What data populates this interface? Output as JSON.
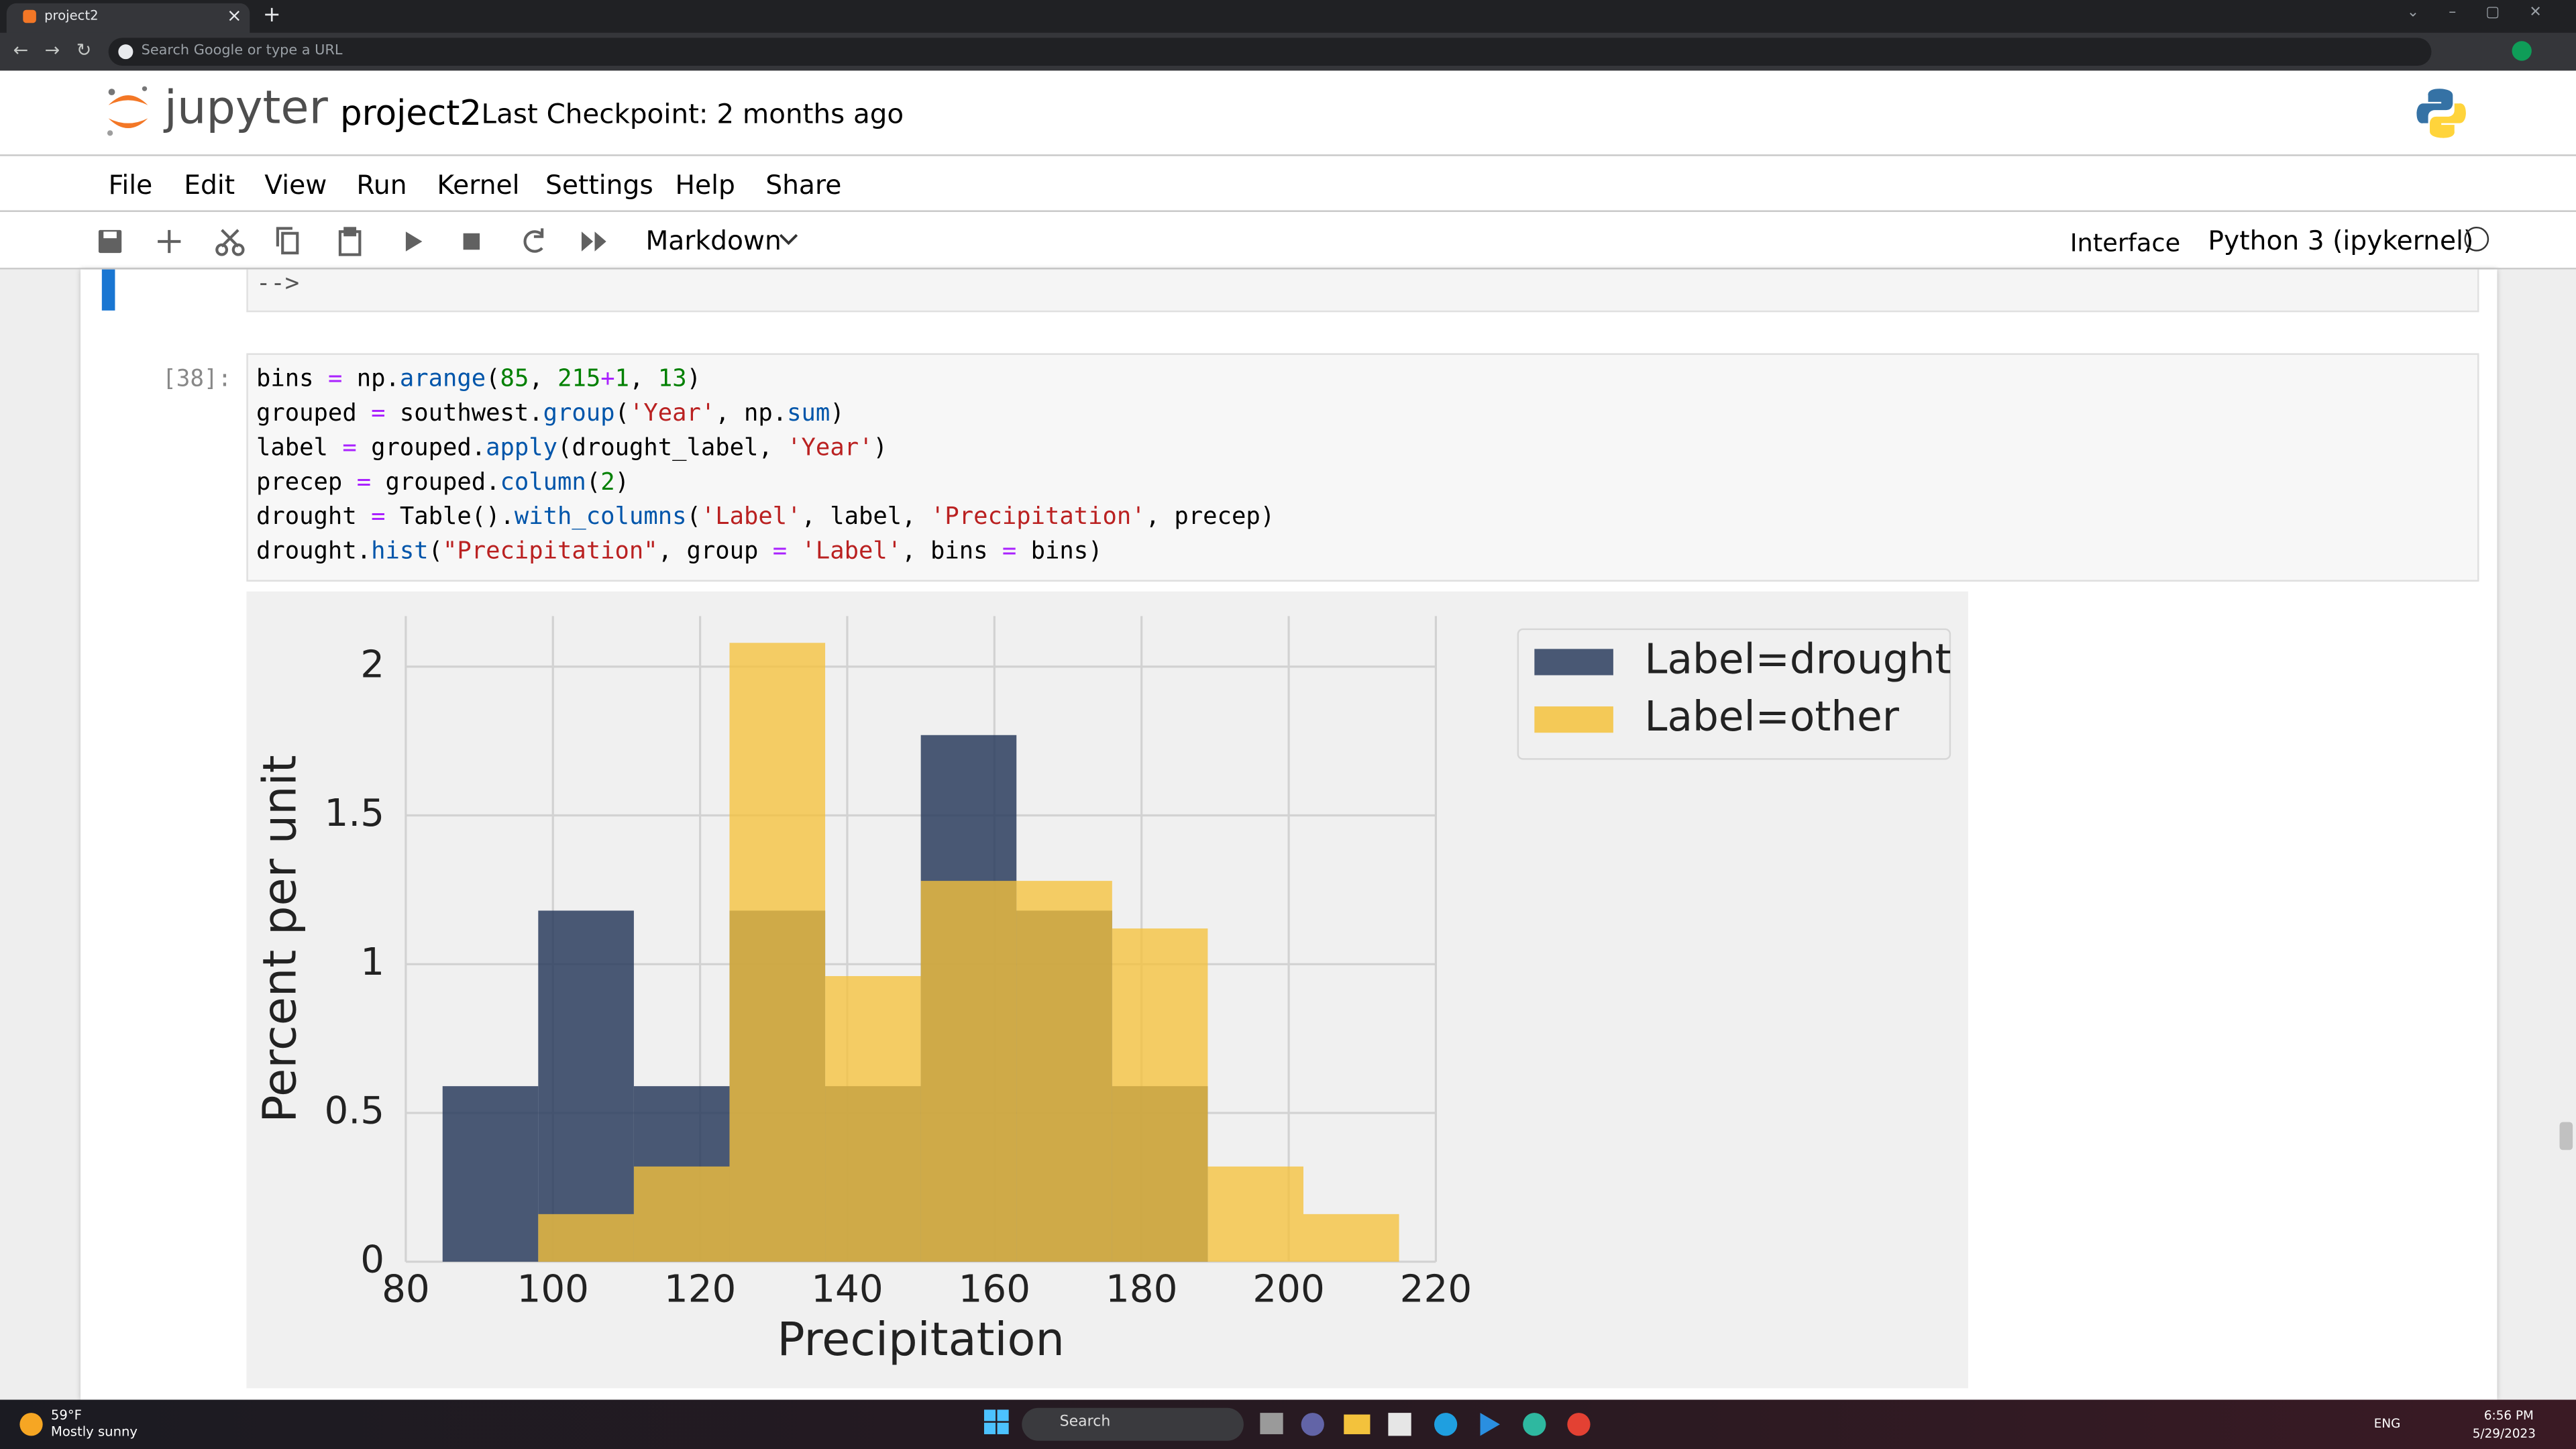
{
  "browser": {
    "tab_title": "project2",
    "address": "Search Google or type a URL"
  },
  "header": {
    "logo": "jupyter",
    "notebook_name": "project2",
    "checkpoint": "Last Checkpoint: 2 months ago"
  },
  "menu": [
    "File",
    "Edit",
    "View",
    "Run",
    "Kernel",
    "Settings",
    "Help",
    "Share"
  ],
  "toolbar": {
    "cell_type": "Markdown",
    "interface": "Interface",
    "kernel": "Python 3 (ipykernel)"
  },
  "previous_cell": {
    "text": "-->"
  },
  "code_cell": {
    "prompt": "[38]:",
    "lines": [
      [
        [
          "bins ",
          "#000000"
        ],
        [
          "=",
          "#aa22ff"
        ],
        [
          " np.",
          "#000000"
        ],
        [
          "arange",
          "#0055aa"
        ],
        [
          "(",
          "#000000"
        ],
        [
          "85",
          "#008000"
        ],
        [
          ", ",
          "#000000"
        ],
        [
          "215",
          "#008000"
        ],
        [
          "+",
          "#aa22ff"
        ],
        [
          "1",
          "#008000"
        ],
        [
          ", ",
          "#000000"
        ],
        [
          "13",
          "#008000"
        ],
        [
          ")",
          "#000000"
        ]
      ],
      [
        [
          "grouped ",
          "#000000"
        ],
        [
          "=",
          "#aa22ff"
        ],
        [
          " southwest.",
          "#000000"
        ],
        [
          "group",
          "#0055aa"
        ],
        [
          "(",
          "#000000"
        ],
        [
          "'Year'",
          "#ba2121"
        ],
        [
          ", np.",
          "#000000"
        ],
        [
          "sum",
          "#0055aa"
        ],
        [
          ")",
          "#000000"
        ]
      ],
      [
        [
          "label ",
          "#000000"
        ],
        [
          "=",
          "#aa22ff"
        ],
        [
          " grouped.",
          "#000000"
        ],
        [
          "apply",
          "#0055aa"
        ],
        [
          "(drought_label, ",
          "#000000"
        ],
        [
          "'Year'",
          "#ba2121"
        ],
        [
          ")",
          "#000000"
        ]
      ],
      [
        [
          "precep ",
          "#000000"
        ],
        [
          "=",
          "#aa22ff"
        ],
        [
          " grouped.",
          "#000000"
        ],
        [
          "column",
          "#0055aa"
        ],
        [
          "(",
          "#000000"
        ],
        [
          "2",
          "#008000"
        ],
        [
          ")",
          "#000000"
        ]
      ],
      [
        [
          "drought ",
          "#000000"
        ],
        [
          "=",
          "#aa22ff"
        ],
        [
          " Table().",
          "#000000"
        ],
        [
          "with_columns",
          "#0055aa"
        ],
        [
          "(",
          "#000000"
        ],
        [
          "'Label'",
          "#ba2121"
        ],
        [
          ", label, ",
          "#000000"
        ],
        [
          "'Precipitation'",
          "#ba2121"
        ],
        [
          ", precep)",
          "#000000"
        ]
      ],
      [
        [
          "drought.",
          "#000000"
        ],
        [
          "hist",
          "#0055aa"
        ],
        [
          "(",
          "#000000"
        ],
        [
          "\"Precipitation\"",
          "#ba2121"
        ],
        [
          ", group ",
          "#000000"
        ],
        [
          "=",
          "#aa22ff"
        ],
        [
          " ",
          "#000000"
        ],
        [
          "'Label'",
          "#ba2121"
        ],
        [
          ", bins ",
          "#000000"
        ],
        [
          "=",
          "#aa22ff"
        ],
        [
          " bins)",
          "#000000"
        ]
      ]
    ]
  },
  "chart_data": {
    "type": "histogram",
    "xlabel": "Precipitation",
    "ylabel": "Percent per unit",
    "bins": [
      85,
      98,
      111,
      124,
      137,
      150,
      163,
      176,
      189,
      202,
      215
    ],
    "series": [
      {
        "name": "Label=drought",
        "color": "#2b3d5e",
        "values": [
          0.59,
          1.18,
          0.59,
          1.18,
          0.59,
          1.77,
          1.18,
          0.59,
          0,
          0
        ]
      },
      {
        "name": "Label=other",
        "color": "#f5c23c",
        "values": [
          0,
          0.16,
          0.32,
          2.08,
          0.96,
          1.28,
          1.28,
          1.12,
          0.32,
          0.16
        ]
      }
    ],
    "xlim": [
      80,
      220
    ],
    "xticks": [
      80,
      100,
      120,
      140,
      160,
      180,
      200,
      220
    ],
    "ylim": [
      0,
      2.17
    ],
    "yticks": [
      0,
      0.5,
      1,
      1.5,
      2
    ],
    "grid": true,
    "legend": "upper right"
  },
  "taskbar": {
    "temperature": "59°F",
    "weather": "Mostly sunny",
    "search": "Search",
    "language": "ENG",
    "time": "6:56 PM",
    "date": "5/29/2023"
  }
}
